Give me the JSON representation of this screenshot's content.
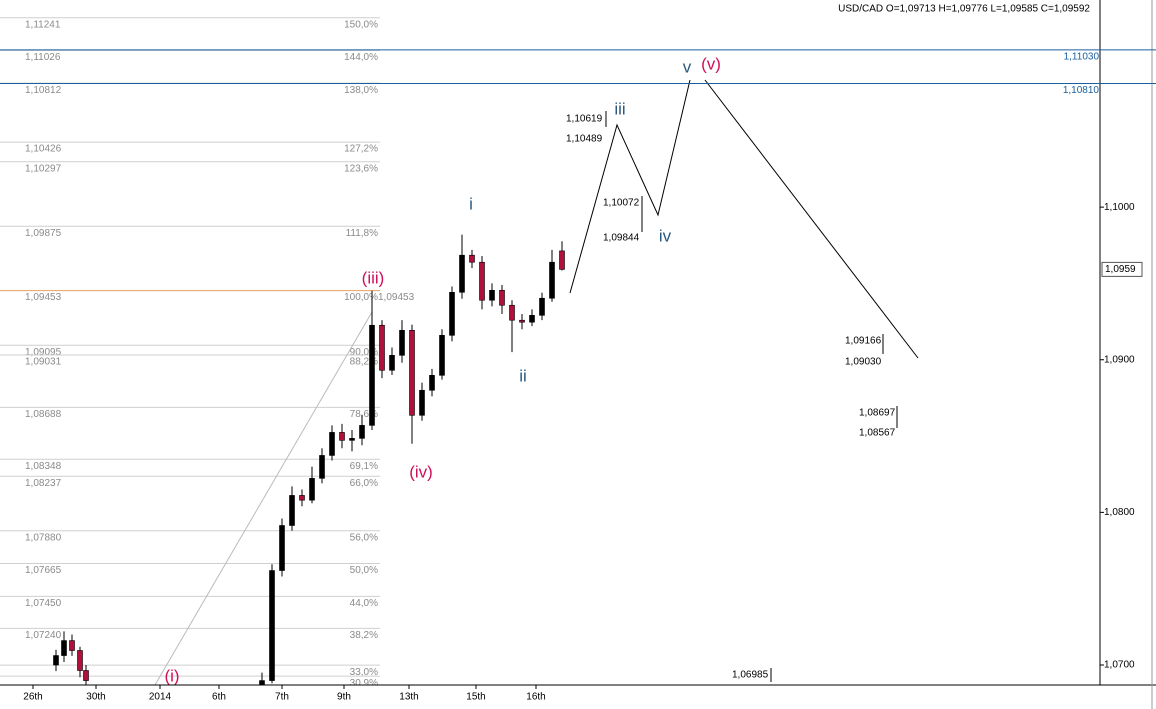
{
  "chart_data": {
    "type": "candlestick",
    "title": "USD/CAD O=1,09713 H=1,09776 L=1,09585 C=1,09592",
    "xlim": [
      0,
      110
    ],
    "ylim": [
      1.06869,
      1.11357
    ],
    "xticks": [
      {
        "value": 3.3,
        "label": "26th"
      },
      {
        "value": 9.6,
        "label": "30th"
      },
      {
        "value": 16,
        "label": "2014"
      },
      {
        "value": 21.9,
        "label": "6th"
      },
      {
        "value": 28.2,
        "label": "7th"
      },
      {
        "value": 34.4,
        "label": "9th"
      },
      {
        "value": 40.9,
        "label": "13th"
      },
      {
        "value": 47.6,
        "label": "15th"
      },
      {
        "value": 53.6,
        "label": "16th"
      }
    ],
    "yticks": [
      {
        "value": 1.1,
        "label": "1,1000"
      },
      {
        "value": 1.09,
        "label": "1,0900"
      },
      {
        "value": 1.08,
        "label": "1,0800"
      },
      {
        "value": 1.07,
        "label": "1,0700"
      }
    ],
    "up_color": "#000000",
    "down_color": "#b0103a",
    "x": [
      5.6,
      6.4,
      7.2,
      8.0,
      8.6,
      26.2,
      27.2,
      28.2,
      29.2,
      30.2,
      31.2,
      32.2,
      33.2,
      34.2,
      35.2,
      36.2,
      37.2,
      38.2,
      39.2,
      40.2,
      41.2,
      42.2,
      43.2,
      44.2,
      45.2,
      46.2,
      47.2,
      48.2,
      49.2,
      50.2,
      51.2,
      52.2,
      53.2,
      54.2,
      55.2,
      56.2
    ],
    "open": [
      1.07,
      1.07062,
      1.0716,
      1.07095,
      1.06964,
      1.0687,
      1.06898,
      1.07619,
      1.07914,
      1.08111,
      1.0808,
      1.08223,
      1.08373,
      1.08524,
      1.08472,
      1.08485,
      1.0857,
      1.09226,
      1.08931,
      1.09029,
      1.09193,
      1.08636,
      1.088,
      1.08898,
      1.0916,
      1.09442,
      1.09685,
      1.09639,
      1.0939,
      1.09455,
      1.09357,
      1.09259,
      1.09246,
      1.09291,
      1.09403,
      1.09713
    ],
    "high": [
      1.071,
      1.0722,
      1.072,
      1.0712,
      1.07,
      1.0695,
      1.0766,
      1.0796,
      1.0817,
      1.0815,
      1.083,
      1.0842,
      1.0857,
      1.0858,
      1.0854,
      1.0864,
      1.09453,
      1.0926,
      1.0908,
      1.0926,
      1.0923,
      1.0885,
      1.0894,
      1.092,
      1.0948,
      1.0982,
      1.0972,
      1.0968,
      1.095,
      1.0949,
      1.0939,
      1.093,
      1.0933,
      1.0944,
      1.0972,
      1.09776
    ],
    "low": [
      1.0696,
      1.0702,
      1.0706,
      1.0692,
      1.0685,
      1.0682,
      1.0688,
      1.0758,
      1.0788,
      1.0804,
      1.0806,
      1.0819,
      1.0834,
      1.0842,
      1.084,
      1.0844,
      1.0854,
      1.0888,
      1.089,
      1.0898,
      1.0845,
      1.086,
      1.0876,
      1.0887,
      1.0912,
      1.094,
      1.096,
      1.0933,
      1.0935,
      1.093,
      1.0905,
      1.092,
      1.0922,
      1.0926,
      1.0938,
      1.09585
    ],
    "close": [
      1.07062,
      1.0716,
      1.07095,
      1.06964,
      1.06898,
      1.06898,
      1.07619,
      1.07914,
      1.08111,
      1.0808,
      1.08223,
      1.08373,
      1.08524,
      1.08472,
      1.08485,
      1.0857,
      1.09226,
      1.08931,
      1.09029,
      1.09193,
      1.08636,
      1.088,
      1.08898,
      1.0916,
      1.09442,
      1.09685,
      1.09639,
      1.0939,
      1.09455,
      1.09357,
      1.09259,
      1.09246,
      1.09291,
      1.09403,
      1.09639,
      1.09592
    ],
    "fib_line_color": "#cfcfcf",
    "fib_levels": [
      {
        "value": 1.11241,
        "label": "1,11241",
        "pct": "150,0%"
      },
      {
        "value": 1.11026,
        "label": "1,11026",
        "pct": "144,0%"
      },
      {
        "value": 1.10812,
        "label": "1,10812",
        "pct": "138,0%"
      },
      {
        "value": 1.10426,
        "label": "1,10426",
        "pct": "127,2%"
      },
      {
        "value": 1.10297,
        "label": "1,10297",
        "pct": "123,6%"
      },
      {
        "value": 1.09875,
        "label": "1,09875",
        "pct": "111,8%"
      },
      {
        "value": 1.09453,
        "label": "1,09453",
        "pct": "100,0%",
        "color": "#e8a060"
      },
      {
        "value": 1.09095,
        "label": "1,09095",
        "pct": "90,0%"
      },
      {
        "value": 1.09031,
        "label": "1,09031",
        "pct": "88,2%"
      },
      {
        "value": 1.08688,
        "label": "1,08688",
        "pct": "78,6%"
      },
      {
        "value": 1.08348,
        "label": "1,08348",
        "pct": "69,1%"
      },
      {
        "value": 1.08237,
        "label": "1,08237",
        "pct": "66,0%"
      },
      {
        "value": 1.0788,
        "label": "1,07880",
        "pct": "56,0%"
      },
      {
        "value": 1.07665,
        "label": "1,07665",
        "pct": "50,0%"
      },
      {
        "value": 1.0745,
        "label": "1,07450",
        "pct": "44,0%"
      },
      {
        "value": 1.0724,
        "label": "1,07240",
        "pct": "38,2%"
      },
      {
        "value": 1.06999,
        "pct": "33,0%"
      },
      {
        "value": 1.06927,
        "pct": "30,9%"
      }
    ],
    "levels": [
      {
        "value": 1.1103,
        "label": "1,11030",
        "color": "#1a5fa0"
      },
      {
        "value": 1.1081,
        "label": "1,10810",
        "color": "#1a5fa0"
      }
    ],
    "last_price": {
      "value": 1.09592,
      "label": "1,0959"
    },
    "waves": [
      {
        "label": "(i)",
        "color": "#d0105a"
      },
      {
        "label": "(iii)",
        "color": "#d0105a"
      },
      {
        "label": "(iv)",
        "color": "#d0105a"
      },
      {
        "label": "(v)",
        "color": "#d0105a"
      },
      {
        "label": "i",
        "color": "#2a5a80"
      },
      {
        "label": "ii",
        "color": "#2a5a80"
      },
      {
        "label": "iii",
        "color": "#2a5a80"
      },
      {
        "label": "iv",
        "color": "#2a5a80"
      },
      {
        "label": "v",
        "color": "#2a5a80"
      }
    ],
    "annotations": [
      "1,10619",
      "1,10489",
      "1,10072",
      "1,09844",
      "1,09166",
      "1,09030",
      "1,08697",
      "1,08567",
      "1,06985"
    ]
  }
}
